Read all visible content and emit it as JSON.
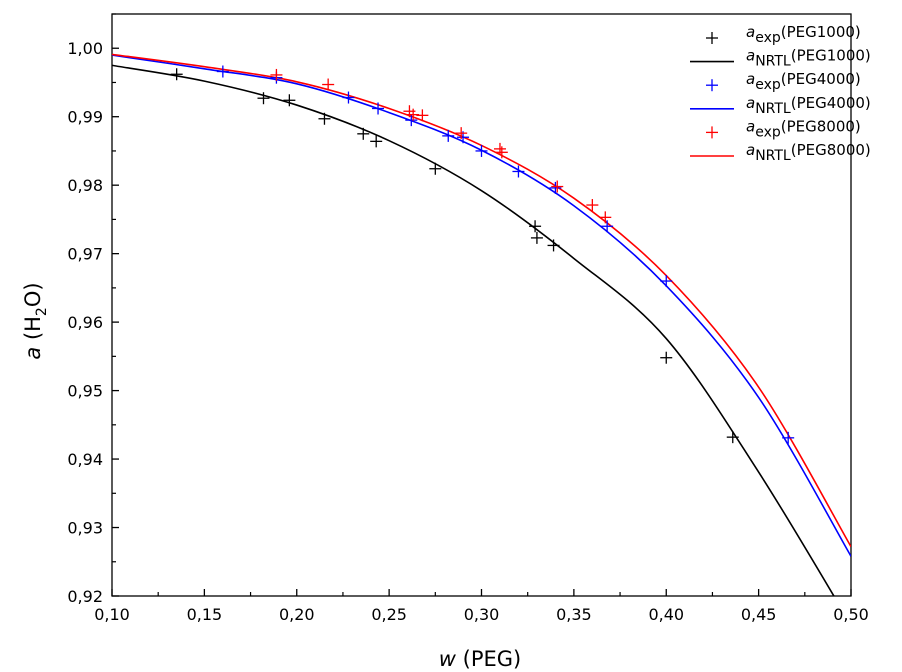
{
  "chart_data": {
    "type": "scatter",
    "xlabel": {
      "italic": "w",
      "rest": " (PEG)"
    },
    "ylabel": {
      "italic": "a",
      "pre": " (H",
      "sub": "2",
      "post": "O)"
    },
    "xlim": [
      0.1,
      0.5
    ],
    "ylim": [
      0.92,
      1.005
    ],
    "x_ticks": [
      "0,10",
      "0,15",
      "0,20",
      "0,25",
      "0,30",
      "0,35",
      "0,40",
      "0,45",
      "0,50"
    ],
    "y_ticks": [
      "0,92",
      "0,93",
      "0,94",
      "0,95",
      "0,96",
      "0,97",
      "0,98",
      "0,99",
      "1,00"
    ],
    "grid": false,
    "legend_position": "top-right",
    "colors": {
      "peg1000": "#000000",
      "peg4000": "#0000ff",
      "peg8000": "#ff0000"
    },
    "series": [
      {
        "name": "exp(PEG1000)",
        "symbol": "a",
        "subscript": "exp",
        "suffix": "(PEG1000)",
        "kind": "marker",
        "color": "#000000",
        "points": [
          [
            0.135,
            0.9962
          ],
          [
            0.182,
            0.9927
          ],
          [
            0.196,
            0.9924
          ],
          [
            0.215,
            0.9897
          ],
          [
            0.236,
            0.9875
          ],
          [
            0.243,
            0.9864
          ],
          [
            0.275,
            0.9824
          ],
          [
            0.329,
            0.974
          ],
          [
            0.33,
            0.9723
          ],
          [
            0.339,
            0.9712
          ],
          [
            0.4,
            0.9548
          ],
          [
            0.436,
            0.9432
          ]
        ]
      },
      {
        "name": "NRTL(PEG1000)",
        "symbol": "a",
        "subscript": "NRTL",
        "suffix": "(PEG1000)",
        "kind": "line",
        "color": "#000000",
        "points": [
          [
            0.1,
            0.9975
          ],
          [
            0.15,
            0.9952
          ],
          [
            0.2,
            0.9917
          ],
          [
            0.25,
            0.9865
          ],
          [
            0.3,
            0.9792
          ],
          [
            0.35,
            0.9693
          ],
          [
            0.4,
            0.9576
          ],
          [
            0.45,
            0.9381
          ],
          [
            0.5,
            0.9158
          ]
        ]
      },
      {
        "name": "exp(PEG4000)",
        "symbol": "a",
        "subscript": "exp",
        "suffix": "(PEG4000)",
        "kind": "marker",
        "color": "#0000ff",
        "points": [
          [
            0.16,
            0.9966
          ],
          [
            0.189,
            0.9957
          ],
          [
            0.228,
            0.9928
          ],
          [
            0.244,
            0.9912
          ],
          [
            0.262,
            0.9895
          ],
          [
            0.282,
            0.9872
          ],
          [
            0.29,
            0.987
          ],
          [
            0.3,
            0.985
          ],
          [
            0.32,
            0.982
          ],
          [
            0.34,
            0.9796
          ],
          [
            0.368,
            0.974
          ],
          [
            0.4,
            0.966
          ],
          [
            0.466,
            0.9431
          ]
        ]
      },
      {
        "name": "NRTL(PEG4000)",
        "symbol": "a",
        "subscript": "NRTL",
        "suffix": "(PEG4000)",
        "kind": "line",
        "color": "#0000ff",
        "points": [
          [
            0.1,
            0.999
          ],
          [
            0.15,
            0.997
          ],
          [
            0.2,
            0.9948
          ],
          [
            0.25,
            0.9906
          ],
          [
            0.3,
            0.9851
          ],
          [
            0.35,
            0.977
          ],
          [
            0.4,
            0.9653
          ],
          [
            0.45,
            0.949
          ],
          [
            0.5,
            0.9258
          ]
        ]
      },
      {
        "name": "exp(PEG8000)",
        "symbol": "a",
        "subscript": "exp",
        "suffix": "(PEG8000)",
        "kind": "marker",
        "color": "#ff0000",
        "points": [
          [
            0.189,
            0.9961
          ],
          [
            0.217,
            0.9947
          ],
          [
            0.261,
            0.9908
          ],
          [
            0.263,
            0.9903
          ],
          [
            0.268,
            0.9902
          ],
          [
            0.289,
            0.9876
          ],
          [
            0.31,
            0.9853
          ],
          [
            0.311,
            0.9848
          ],
          [
            0.341,
            0.9798
          ],
          [
            0.36,
            0.9771
          ],
          [
            0.367,
            0.9753
          ]
        ]
      },
      {
        "name": "NRTL(PEG8000)",
        "symbol": "a",
        "subscript": "NRTL",
        "suffix": "(PEG8000)",
        "kind": "line",
        "color": "#ff0000",
        "points": [
          [
            0.1,
            0.9991
          ],
          [
            0.15,
            0.9973
          ],
          [
            0.2,
            0.9951
          ],
          [
            0.25,
            0.9912
          ],
          [
            0.3,
            0.9858
          ],
          [
            0.35,
            0.9781
          ],
          [
            0.4,
            0.9668
          ],
          [
            0.45,
            0.9505
          ],
          [
            0.5,
            0.9272
          ]
        ]
      }
    ]
  }
}
